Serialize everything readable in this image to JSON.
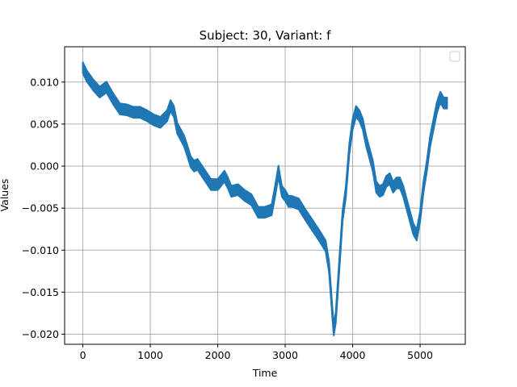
{
  "chart_data": {
    "type": "line",
    "title": "Subject: 30, Variant: f",
    "xlabel": "Time",
    "ylabel": "Values",
    "xlim": [
      -270,
      5670
    ],
    "ylim": [
      -0.0212,
      0.0142
    ],
    "xticks": [
      0,
      1000,
      2000,
      3000,
      4000,
      5000
    ],
    "yticks": [
      -0.02,
      -0.015,
      -0.01,
      -0.005,
      0.0,
      0.005,
      0.01
    ],
    "xtick_labels": [
      "0",
      "1000",
      "2000",
      "3000",
      "4000",
      "5000"
    ],
    "ytick_labels": [
      "−0.020",
      "−0.015",
      "−0.010",
      "−0.005",
      "0.000",
      "0.005",
      "0.010"
    ],
    "grid": true,
    "legend": "top-right, empty",
    "series": [
      {
        "color": "#1f77b4",
        "band_width": 0.0013,
        "x": [
          0,
          60,
          150,
          250,
          350,
          450,
          550,
          650,
          750,
          850,
          950,
          1050,
          1150,
          1250,
          1300,
          1350,
          1400,
          1500,
          1550,
          1600,
          1650,
          1700,
          1800,
          1900,
          2000,
          2100,
          2150,
          2200,
          2300,
          2400,
          2500,
          2600,
          2700,
          2800,
          2850,
          2900,
          2950,
          3000,
          3050,
          3100,
          3200,
          3300,
          3400,
          3500,
          3600,
          3650,
          3700,
          3720,
          3750,
          3800,
          3850,
          3900,
          3950,
          4000,
          4050,
          4100,
          4150,
          4200,
          4250,
          4300,
          4350,
          4400,
          4450,
          4500,
          4550,
          4600,
          4650,
          4700,
          4750,
          4800,
          4850,
          4900,
          4950,
          5000,
          5050,
          5100,
          5150,
          5200,
          5250,
          5300,
          5350,
          5400
        ],
        "values": [
          0.0117,
          0.0107,
          0.0097,
          0.0088,
          0.0094,
          0.008,
          0.0068,
          0.0067,
          0.0064,
          0.0064,
          0.006,
          0.0055,
          0.0052,
          0.006,
          0.0072,
          0.0065,
          0.0045,
          0.003,
          0.0018,
          0.0005,
          0.0,
          0.0002,
          -0.001,
          -0.0022,
          -0.0022,
          -0.0012,
          -0.002,
          -0.003,
          -0.0028,
          -0.0035,
          -0.004,
          -0.0055,
          -0.0055,
          -0.0052,
          -0.003,
          -0.0006,
          -0.003,
          -0.0035,
          -0.0042,
          -0.0042,
          -0.0045,
          -0.0058,
          -0.007,
          -0.0082,
          -0.0095,
          -0.012,
          -0.0175,
          -0.0195,
          -0.018,
          -0.012,
          -0.006,
          -0.003,
          0.002,
          0.005,
          0.0065,
          0.006,
          0.005,
          0.003,
          0.0015,
          0.0,
          -0.0025,
          -0.003,
          -0.0028,
          -0.0018,
          -0.0015,
          -0.0025,
          -0.002,
          -0.002,
          -0.003,
          -0.0045,
          -0.006,
          -0.0075,
          -0.0082,
          -0.006,
          -0.0025,
          0.0,
          0.003,
          0.005,
          0.007,
          0.0082,
          0.0075,
          0.0075
        ]
      }
    ]
  }
}
